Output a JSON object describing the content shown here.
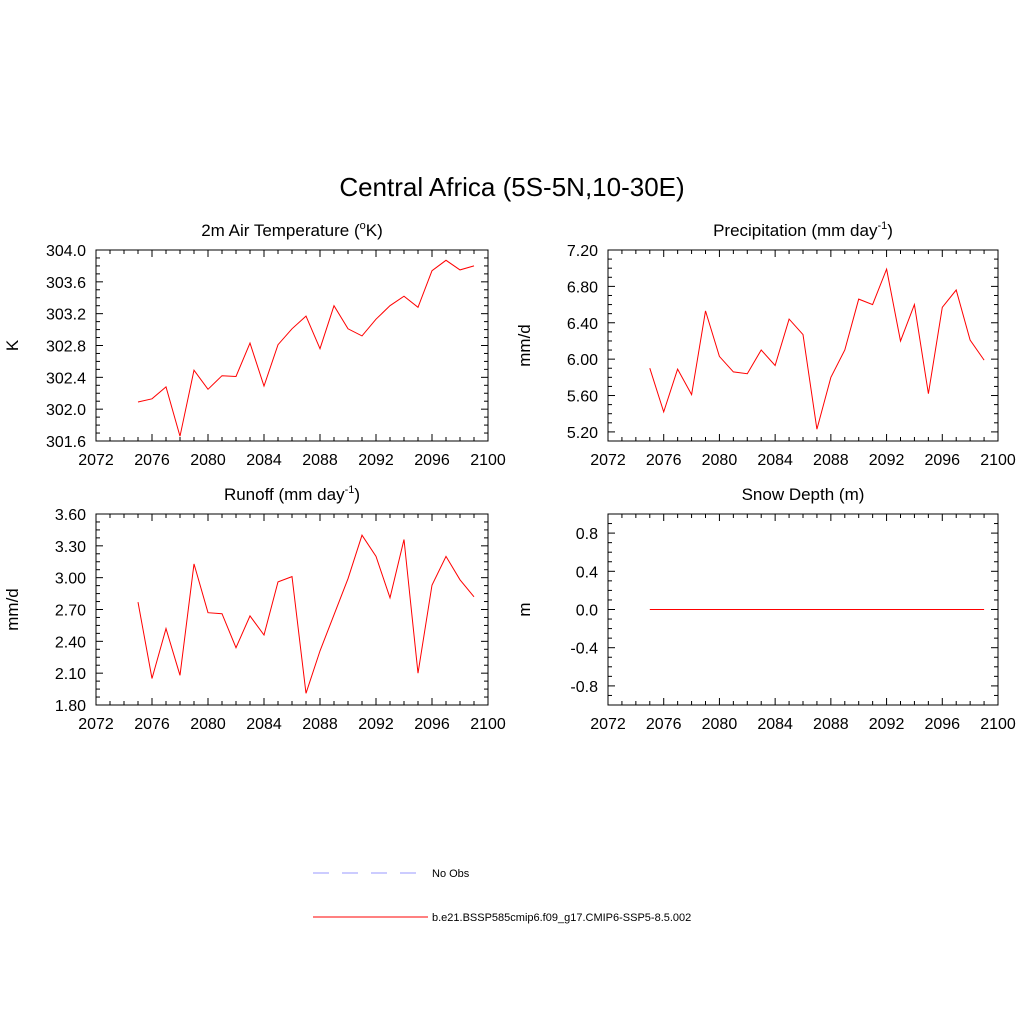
{
  "figure": {
    "title": "Central Africa (5S-5N,10-30E)"
  },
  "legend": {
    "entries": [
      {
        "label": "No Obs",
        "color": "#9999ff",
        "style": "dashed"
      },
      {
        "label": "b.e21.BSSP585cmip6.f09_g17.CMIP6-SSP5-8.5.002",
        "color": "#ff0000",
        "style": "solid"
      }
    ]
  },
  "chart_data": [
    {
      "type": "line",
      "title": "2m Air Temperature (",
      "title_sup": "o",
      "title_suffix": "K)",
      "xlabel": "",
      "ylabel": "K",
      "xlim": [
        2072,
        2100
      ],
      "ylim": [
        301.6,
        304.0
      ],
      "xticks": [
        2072,
        2076,
        2080,
        2084,
        2088,
        2092,
        2096,
        2100
      ],
      "xticklabels": [
        "2072",
        "2076",
        "2080",
        "2084",
        "2088",
        "2092",
        "2096",
        "2100"
      ],
      "yticks": [
        301.6,
        302.0,
        302.4,
        302.8,
        303.2,
        303.6,
        304.0
      ],
      "yticklabels": [
        "301.6",
        "302.0",
        "302.4",
        "302.8",
        "303.2",
        "303.6",
        "304.0"
      ],
      "x": [
        2075,
        2076,
        2077,
        2078,
        2079,
        2080,
        2081,
        2082,
        2083,
        2084,
        2085,
        2086,
        2087,
        2088,
        2089,
        2090,
        2091,
        2092,
        2093,
        2094,
        2095,
        2096,
        2097,
        2098,
        2099
      ],
      "series": [
        {
          "color": "#ff0000",
          "values": [
            302.09,
            302.13,
            302.28,
            301.66,
            302.49,
            302.25,
            302.42,
            302.41,
            302.83,
            302.29,
            302.81,
            303.01,
            303.17,
            302.76,
            303.3,
            303.01,
            302.92,
            303.13,
            303.3,
            303.42,
            303.28,
            303.74,
            303.87,
            303.75,
            303.8
          ]
        }
      ]
    },
    {
      "type": "line",
      "title": "Precipitation (mm day",
      "title_sup": "-1",
      "title_suffix": ")",
      "xlabel": "",
      "ylabel": "mm/d",
      "xlim": [
        2072,
        2100
      ],
      "ylim": [
        5.1,
        7.2
      ],
      "xticks": [
        2072,
        2076,
        2080,
        2084,
        2088,
        2092,
        2096,
        2100
      ],
      "xticklabels": [
        "2072",
        "2076",
        "2080",
        "2084",
        "2088",
        "2092",
        "2096",
        "2100"
      ],
      "yticks": [
        5.2,
        5.6,
        6.0,
        6.4,
        6.8,
        7.2
      ],
      "yticklabels": [
        "5.20",
        "5.60",
        "6.00",
        "6.40",
        "6.80",
        "7.20"
      ],
      "x": [
        2075,
        2076,
        2077,
        2078,
        2079,
        2080,
        2081,
        2082,
        2083,
        2084,
        2085,
        2086,
        2087,
        2088,
        2089,
        2090,
        2091,
        2092,
        2093,
        2094,
        2095,
        2096,
        2097,
        2098,
        2099
      ],
      "series": [
        {
          "color": "#ff0000",
          "values": [
            5.9,
            5.42,
            5.89,
            5.61,
            6.53,
            6.03,
            5.86,
            5.84,
            6.1,
            5.93,
            6.44,
            6.27,
            5.23,
            5.8,
            6.1,
            6.66,
            6.6,
            6.99,
            6.2,
            6.6,
            5.62,
            6.57,
            6.76,
            6.21,
            5.99
          ]
        }
      ]
    },
    {
      "type": "line",
      "title": "Runoff (mm day",
      "title_sup": "-1",
      "title_suffix": ")",
      "xlabel": "",
      "ylabel": "mm/d",
      "xlim": [
        2072,
        2100
      ],
      "ylim": [
        1.8,
        3.6
      ],
      "xticks": [
        2072,
        2076,
        2080,
        2084,
        2088,
        2092,
        2096,
        2100
      ],
      "xticklabels": [
        "2072",
        "2076",
        "2080",
        "2084",
        "2088",
        "2092",
        "2096",
        "2100"
      ],
      "yticks": [
        1.8,
        2.1,
        2.4,
        2.7,
        3.0,
        3.3,
        3.6
      ],
      "yticklabels": [
        "1.80",
        "2.10",
        "2.40",
        "2.70",
        "3.00",
        "3.30",
        "3.60"
      ],
      "x": [
        2075,
        2076,
        2077,
        2078,
        2079,
        2080,
        2081,
        2082,
        2083,
        2084,
        2085,
        2086,
        2087,
        2088,
        2089,
        2090,
        2091,
        2092,
        2093,
        2094,
        2095,
        2096,
        2097,
        2098,
        2099
      ],
      "series": [
        {
          "color": "#ff0000",
          "values": [
            2.77,
            2.05,
            2.52,
            2.08,
            3.13,
            2.67,
            2.66,
            2.34,
            2.64,
            2.46,
            2.96,
            3.01,
            1.91,
            2.31,
            2.65,
            2.99,
            3.4,
            3.2,
            2.81,
            3.36,
            2.1,
            2.93,
            3.2,
            2.98,
            2.82
          ]
        }
      ]
    },
    {
      "type": "line",
      "title": "Snow Depth (m)",
      "title_sup": "",
      "title_suffix": "",
      "xlabel": "",
      "ylabel": "m",
      "xlim": [
        2072,
        2100
      ],
      "ylim": [
        -1.0,
        1.0
      ],
      "xticks": [
        2072,
        2076,
        2080,
        2084,
        2088,
        2092,
        2096,
        2100
      ],
      "xticklabels": [
        "2072",
        "2076",
        "2080",
        "2084",
        "2088",
        "2092",
        "2096",
        "2100"
      ],
      "yticks": [
        -0.8,
        -0.4,
        0.0,
        0.4,
        0.8
      ],
      "yticklabels": [
        "-0.8",
        "-0.4",
        "0.0",
        "0.4",
        "0.8"
      ],
      "x": [
        2075,
        2076,
        2077,
        2078,
        2079,
        2080,
        2081,
        2082,
        2083,
        2084,
        2085,
        2086,
        2087,
        2088,
        2089,
        2090,
        2091,
        2092,
        2093,
        2094,
        2095,
        2096,
        2097,
        2098,
        2099
      ],
      "series": [
        {
          "color": "#ff0000",
          "values": [
            0,
            0,
            0,
            0,
            0,
            0,
            0,
            0,
            0,
            0,
            0,
            0,
            0,
            0,
            0,
            0,
            0,
            0,
            0,
            0,
            0,
            0,
            0,
            0,
            0
          ]
        }
      ]
    }
  ]
}
